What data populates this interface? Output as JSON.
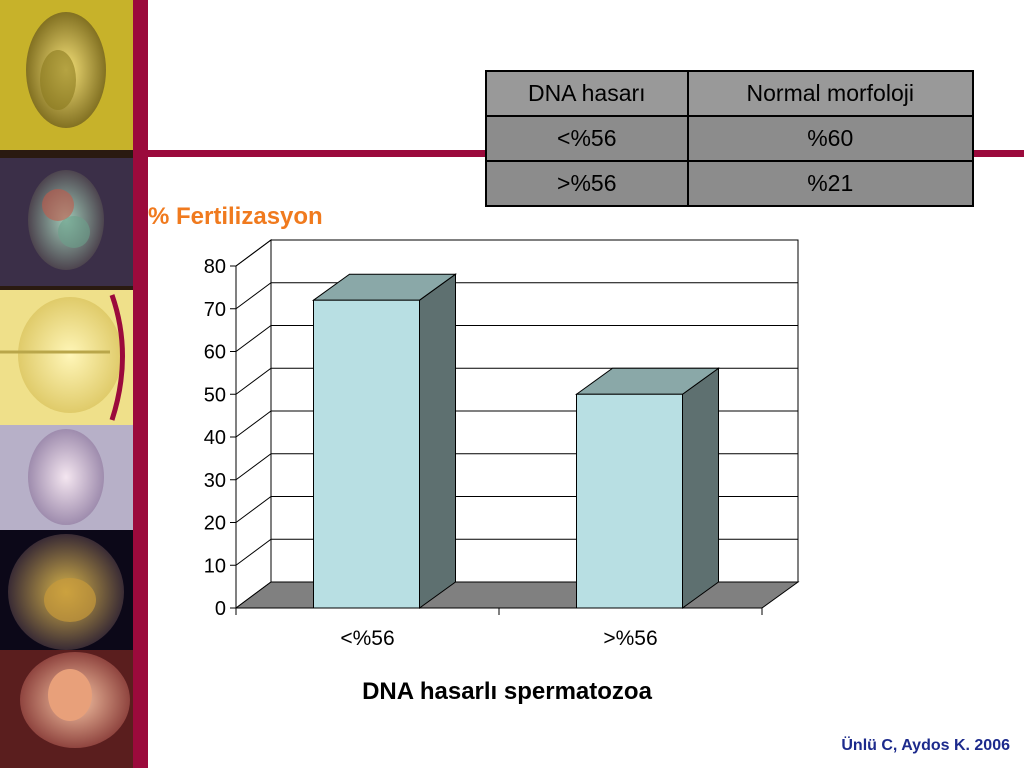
{
  "table": {
    "header": [
      "DNA hasarı",
      "Normal morfoloji"
    ],
    "rows": [
      [
        "<%56",
        "%60"
      ],
      [
        ">%56",
        "%21"
      ]
    ]
  },
  "chart_data": {
    "type": "bar",
    "title": "% Fertilizasyon",
    "xlabel": "DNA hasarlı spermatozoa",
    "ylabel": "",
    "categories": [
      "<%56",
      ">%56"
    ],
    "values": [
      72,
      50
    ],
    "ylim": [
      0,
      80
    ],
    "yticks": [
      0,
      10,
      20,
      30,
      40,
      50,
      60,
      70,
      80
    ],
    "grid": true,
    "style": "3d",
    "colors": {
      "bar_front": "#b8dfe3",
      "bar_top": "#8aa8a8",
      "bar_side": "#5e7070",
      "floor": "#808080"
    }
  },
  "citation": "Ünlü C, Aydos K. 2006",
  "theme": {
    "accent": "#9b0a3c",
    "title_color": "#f07a1e",
    "citation_color": "#1c2a8c"
  }
}
